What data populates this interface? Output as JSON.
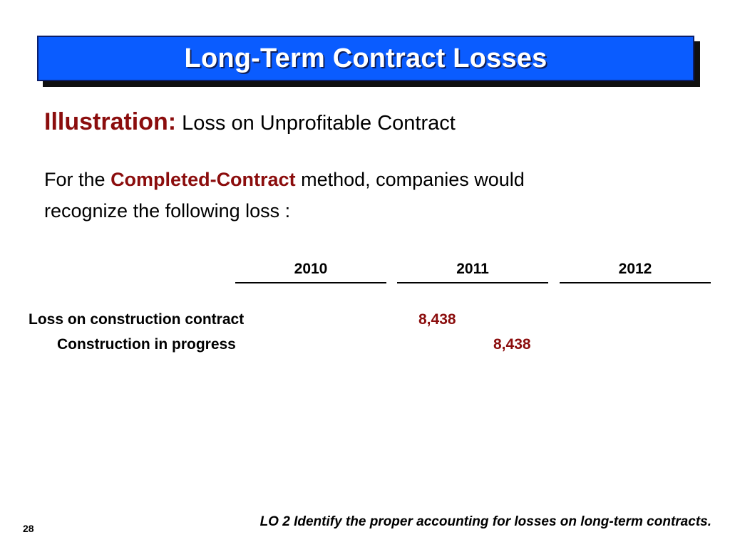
{
  "slide": {
    "title": "Long-Term Contract Losses",
    "illustration_label": "Illustration:",
    "illustration_text": "Loss on Unprofitable Contract",
    "body_prefix": "For the",
    "body_emphasis": "Completed-Contract",
    "body_suffix_line1": "method, companies would",
    "body_line2": "recognize the following loss :",
    "years": [
      "2010",
      "2011",
      "2012"
    ],
    "entries": [
      {
        "label": "Loss on construction contract",
        "debit": "8,438",
        "credit": ""
      },
      {
        "label": "Construction in progress",
        "debit": "",
        "credit": "8,438"
      }
    ],
    "footer_lo": "LO 2  Identify the proper accounting for losses on long-term contracts.",
    "page_number": "28",
    "colors": {
      "title_bg": "#0a5cff",
      "accent_red": "#8b0d0d"
    }
  }
}
